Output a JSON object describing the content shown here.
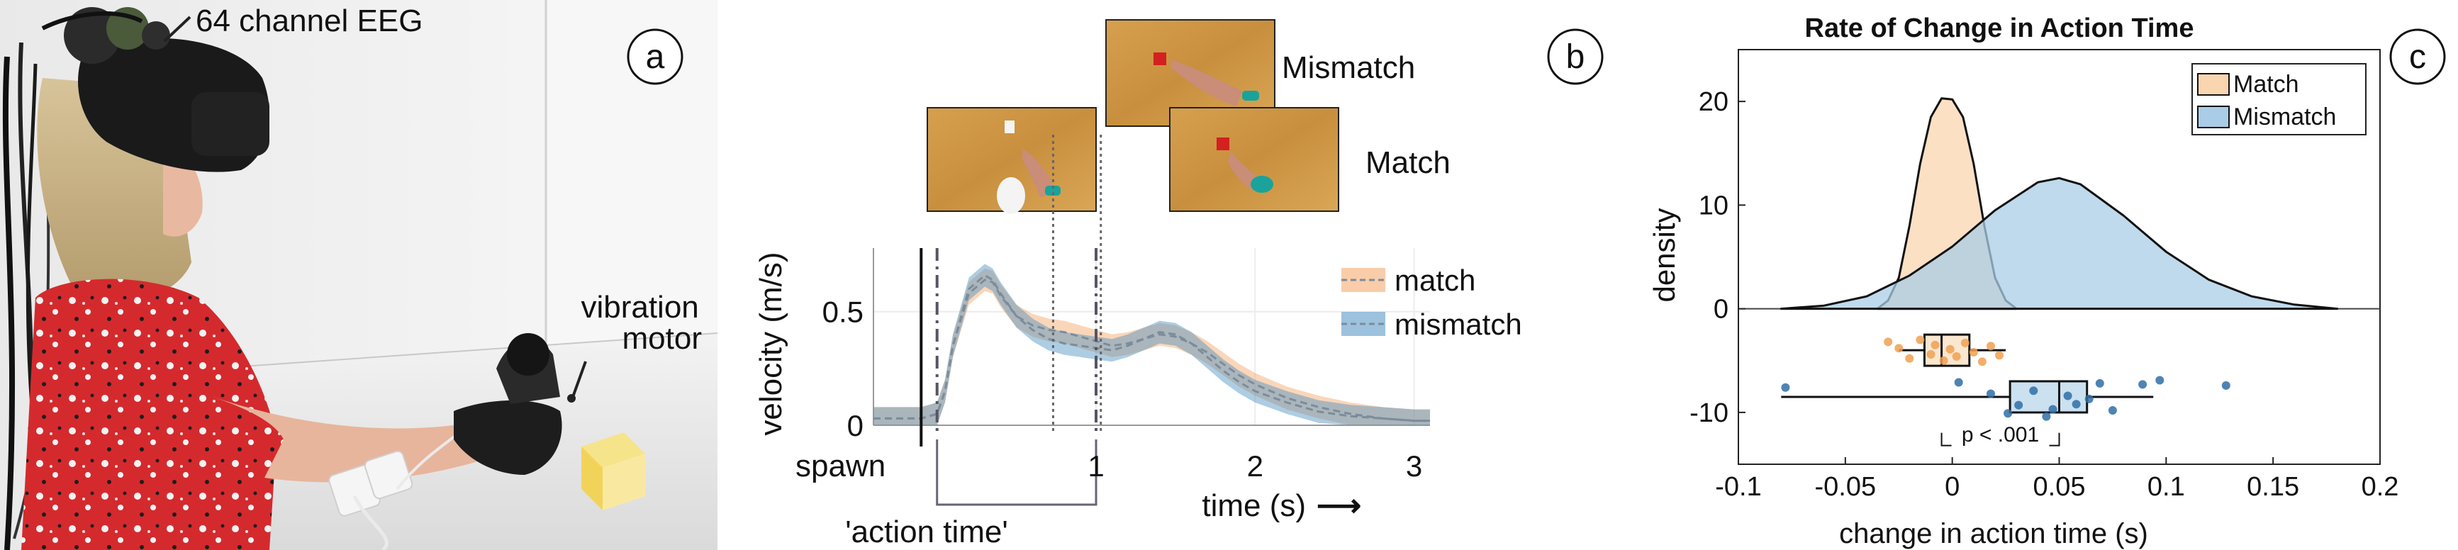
{
  "panel_a": {
    "label": "a",
    "eeg_label": "64 channel EEG",
    "motor_label": "vibration\nmotor"
  },
  "panel_b": {
    "label": "b",
    "thumb_labels": {
      "mismatch": "Mismatch",
      "match": "Match"
    },
    "spawn_label": "spawn",
    "action_time_label": "'action time'",
    "time_arrow": "⟶",
    "colors": {
      "match": "#f4a463",
      "mismatch": "#4a90c2"
    }
  },
  "panel_c": {
    "label": "c",
    "pvalue_label": "p < .001",
    "colors": {
      "match": "#f9d6b0",
      "mismatch": "#a9cde6",
      "match_dot": "#f0a050",
      "mismatch_dot": "#2f6fa6"
    }
  },
  "chart_data": [
    {
      "type": "line",
      "title": "",
      "xlabel": "time (s)",
      "ylabel": "velocity (m/s)",
      "xlim": [
        -0.4,
        3.1
      ],
      "ylim": [
        0,
        0.78
      ],
      "xticks": [
        "1",
        "2",
        "3"
      ],
      "yticks": [
        "0",
        "0.5"
      ],
      "legend": "right",
      "series": [
        {
          "name": "match",
          "x": [
            -0.4,
            -0.1,
            0.0,
            0.05,
            0.1,
            0.2,
            0.3,
            0.35,
            0.4,
            0.5,
            0.6,
            0.7,
            0.8,
            0.9,
            1.0,
            1.1,
            1.2,
            1.3,
            1.4,
            1.5,
            1.6,
            1.7,
            1.8,
            1.9,
            2.0,
            2.2,
            2.4,
            2.6,
            2.8,
            3.0,
            3.1
          ],
          "y": [
            0.03,
            0.03,
            0.05,
            0.15,
            0.35,
            0.58,
            0.64,
            0.63,
            0.57,
            0.48,
            0.44,
            0.42,
            0.41,
            0.39,
            0.37,
            0.35,
            0.36,
            0.38,
            0.4,
            0.39,
            0.36,
            0.32,
            0.27,
            0.22,
            0.18,
            0.12,
            0.08,
            0.05,
            0.03,
            0.02,
            0.02
          ]
        },
        {
          "name": "mismatch",
          "x": [
            -0.4,
            -0.1,
            0.0,
            0.05,
            0.1,
            0.2,
            0.3,
            0.35,
            0.4,
            0.5,
            0.6,
            0.7,
            0.8,
            0.9,
            1.0,
            1.1,
            1.2,
            1.3,
            1.4,
            1.5,
            1.6,
            1.7,
            1.8,
            1.9,
            2.0,
            2.2,
            2.4,
            2.6,
            2.8,
            3.0,
            3.1
          ],
          "y": [
            0.03,
            0.03,
            0.05,
            0.15,
            0.35,
            0.6,
            0.66,
            0.64,
            0.58,
            0.48,
            0.42,
            0.38,
            0.36,
            0.35,
            0.34,
            0.33,
            0.35,
            0.38,
            0.41,
            0.4,
            0.36,
            0.3,
            0.24,
            0.19,
            0.15,
            0.1,
            0.06,
            0.04,
            0.03,
            0.02,
            0.02
          ]
        }
      ],
      "annotations": {
        "spawn_x": -0.1,
        "action_start_x": 0.0,
        "action_end_x": 1.0,
        "dotted_x": [
          0.73,
          1.03
        ]
      }
    },
    {
      "type": "area",
      "title": "Rate of Change in Action Time",
      "xlabel": "change in action time (s)",
      "ylabel": "density",
      "xlim": [
        -0.1,
        0.2
      ],
      "ylim": [
        -15,
        25
      ],
      "xticks": [
        "-0.1",
        "-0.05",
        "0",
        "0.05",
        "0.1",
        "0.15",
        "0.2"
      ],
      "yticks": [
        "-10",
        "0",
        "10",
        "20"
      ],
      "legend": "top-right",
      "series": [
        {
          "name": "Match",
          "x": [
            -0.035,
            -0.03,
            -0.025,
            -0.02,
            -0.015,
            -0.01,
            -0.005,
            0.0,
            0.005,
            0.01,
            0.015,
            0.02,
            0.025,
            0.03
          ],
          "y": [
            0,
            0.8,
            3,
            8,
            14,
            18.5,
            20.3,
            20.2,
            18.5,
            14,
            8,
            3,
            0.8,
            0
          ]
        },
        {
          "name": "Mismatch",
          "x": [
            -0.08,
            -0.06,
            -0.04,
            -0.02,
            0.0,
            0.02,
            0.04,
            0.05,
            0.06,
            0.08,
            0.1,
            0.12,
            0.14,
            0.16,
            0.18
          ],
          "y": [
            0,
            0.3,
            1.2,
            3.2,
            6,
            9.5,
            12.2,
            12.6,
            12,
            9,
            5.5,
            2.8,
            1.2,
            0.4,
            0
          ]
        }
      ],
      "boxplots": [
        {
          "name": "Match",
          "whisker_low": -0.025,
          "q1": -0.013,
          "median": -0.005,
          "q3": 0.008,
          "whisker_high": 0.025,
          "center_y": -4
        },
        {
          "name": "Mismatch",
          "whisker_low": -0.08,
          "q1": 0.027,
          "median": 0.05,
          "q3": 0.063,
          "whisker_high": 0.094,
          "center_y": -8.5
        }
      ],
      "points": {
        "Match": [
          [
            -0.03,
            -3.2
          ],
          [
            -0.025,
            -3.8
          ],
          [
            -0.02,
            -4.8
          ],
          [
            -0.015,
            -3
          ],
          [
            -0.01,
            -4.4
          ],
          [
            -0.008,
            -3.5
          ],
          [
            -0.004,
            -5
          ],
          [
            -0.001,
            -3.9
          ],
          [
            0.002,
            -4.6
          ],
          [
            0.006,
            -3.3
          ],
          [
            0.01,
            -4.2
          ],
          [
            0.014,
            -5.1
          ],
          [
            0.018,
            -3.6
          ],
          [
            0.022,
            -4.5
          ]
        ],
        "Mismatch": [
          [
            -0.078,
            -7.6
          ],
          [
            0.003,
            -7.1
          ],
          [
            0.018,
            -8.2
          ],
          [
            0.026,
            -10.1
          ],
          [
            0.031,
            -9.3
          ],
          [
            0.038,
            -7.9
          ],
          [
            0.044,
            -10.4
          ],
          [
            0.047,
            -9.7
          ],
          [
            0.054,
            -8.4
          ],
          [
            0.058,
            -9.2
          ],
          [
            0.064,
            -8.7
          ],
          [
            0.069,
            -7.2
          ],
          [
            0.075,
            -9.8
          ],
          [
            0.089,
            -7.3
          ],
          [
            0.097,
            -6.9
          ],
          [
            0.128,
            -7.4
          ]
        ]
      }
    }
  ]
}
